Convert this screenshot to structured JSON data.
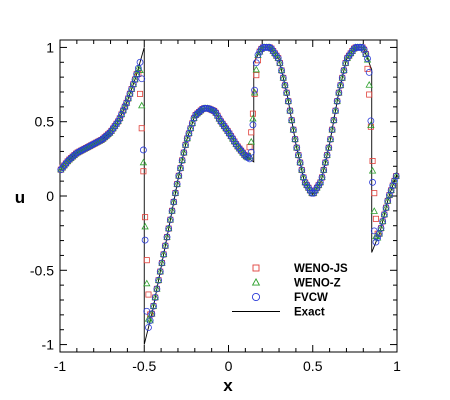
{
  "chart_data": {
    "type": "scatter",
    "title": "",
    "xlabel": "x",
    "ylabel": "u",
    "xlim": [
      -1,
      1
    ],
    "ylim": [
      -1.05,
      1.05
    ],
    "xticks": [
      -1,
      -0.5,
      0,
      0.5,
      1
    ],
    "xtick_labels": [
      "-1",
      "-0.5",
      "0",
      "0.5",
      "1"
    ],
    "yticks": [
      -1,
      -0.5,
      0,
      0.5,
      1
    ],
    "ytick_labels": [
      "-1",
      "-0.5",
      "0",
      "0.5",
      "1"
    ],
    "grid": false,
    "legend_position": "bottom-center",
    "series": [
      {
        "name": "WENO-JS",
        "marker": "square",
        "color": "#e0403a",
        "points": []
      },
      {
        "name": "WENO-Z",
        "marker": "triangle",
        "color": "#2ca02c",
        "points": []
      },
      {
        "name": "FVCW",
        "marker": "circle",
        "color": "#2a3ad8",
        "points": []
      },
      {
        "name": "Exact",
        "marker": "line",
        "color": "#000000",
        "x": [
          -1.0,
          -0.95,
          -0.9,
          -0.85,
          -0.8,
          -0.75,
          -0.7,
          -0.65,
          -0.6,
          -0.55,
          -0.5,
          -0.5,
          -0.45,
          -0.4,
          -0.35,
          -0.3,
          -0.25,
          -0.2,
          -0.15,
          -0.12,
          -0.08,
          -0.05,
          0.0,
          0.05,
          0.1,
          0.15,
          0.15,
          0.2,
          0.25,
          0.3,
          0.35,
          0.4,
          0.45,
          0.5,
          0.55,
          0.6,
          0.65,
          0.7,
          0.75,
          0.8,
          0.85,
          0.85,
          0.9,
          0.95,
          1.0
        ],
        "y": [
          0.17,
          0.24,
          0.29,
          0.32,
          0.35,
          0.38,
          0.43,
          0.51,
          0.64,
          0.8,
          1.0,
          -1.0,
          -0.77,
          -0.48,
          -0.19,
          0.11,
          0.37,
          0.54,
          0.59,
          0.59,
          0.57,
          0.51,
          0.43,
          0.34,
          0.27,
          0.23,
          0.9,
          1.0,
          1.0,
          0.92,
          0.67,
          0.35,
          0.1,
          0.01,
          0.1,
          0.35,
          0.67,
          0.92,
          1.0,
          1.0,
          0.85,
          -0.38,
          -0.24,
          -0.01,
          0.15
        ]
      }
    ]
  }
}
